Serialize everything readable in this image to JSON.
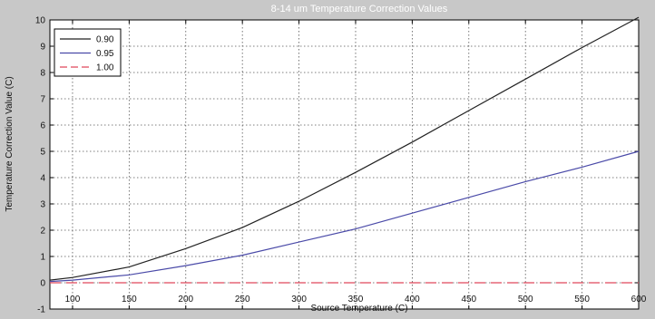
{
  "chart_data": {
    "type": "line",
    "title": "8-14 um Temperature Correction Values",
    "xlabel": "Source Temperature (C)",
    "ylabel": "Temperature Correction Value (C)",
    "xlim": [
      80,
      600
    ],
    "ylim": [
      -1,
      10
    ],
    "xticks": [
      100,
      150,
      200,
      250,
      300,
      350,
      400,
      450,
      500,
      550,
      600
    ],
    "yticks": [
      -1,
      0,
      1,
      2,
      3,
      4,
      5,
      6,
      7,
      8,
      9,
      10
    ],
    "grid": true,
    "legend_position": "top-left",
    "series": [
      {
        "name": "0.90",
        "color": "#222222",
        "dash": "solid",
        "x": [
          80,
          100,
          150,
          200,
          250,
          300,
          350,
          400,
          450,
          500,
          550,
          600
        ],
        "y": [
          0.1,
          0.2,
          0.6,
          1.3,
          2.1,
          3.1,
          4.2,
          5.35,
          6.55,
          7.75,
          8.95,
          10.1
        ]
      },
      {
        "name": "0.95",
        "color": "#4a4aa8",
        "dash": "solid",
        "x": [
          80,
          100,
          150,
          200,
          250,
          300,
          350,
          400,
          450,
          500,
          550,
          600
        ],
        "y": [
          0.05,
          0.1,
          0.3,
          0.65,
          1.05,
          1.55,
          2.05,
          2.65,
          3.25,
          3.85,
          4.4,
          5.0
        ]
      },
      {
        "name": "1.00",
        "color": "#e0485a",
        "dash": "dashed",
        "x": [
          80,
          600
        ],
        "y": [
          0,
          0
        ]
      }
    ]
  }
}
